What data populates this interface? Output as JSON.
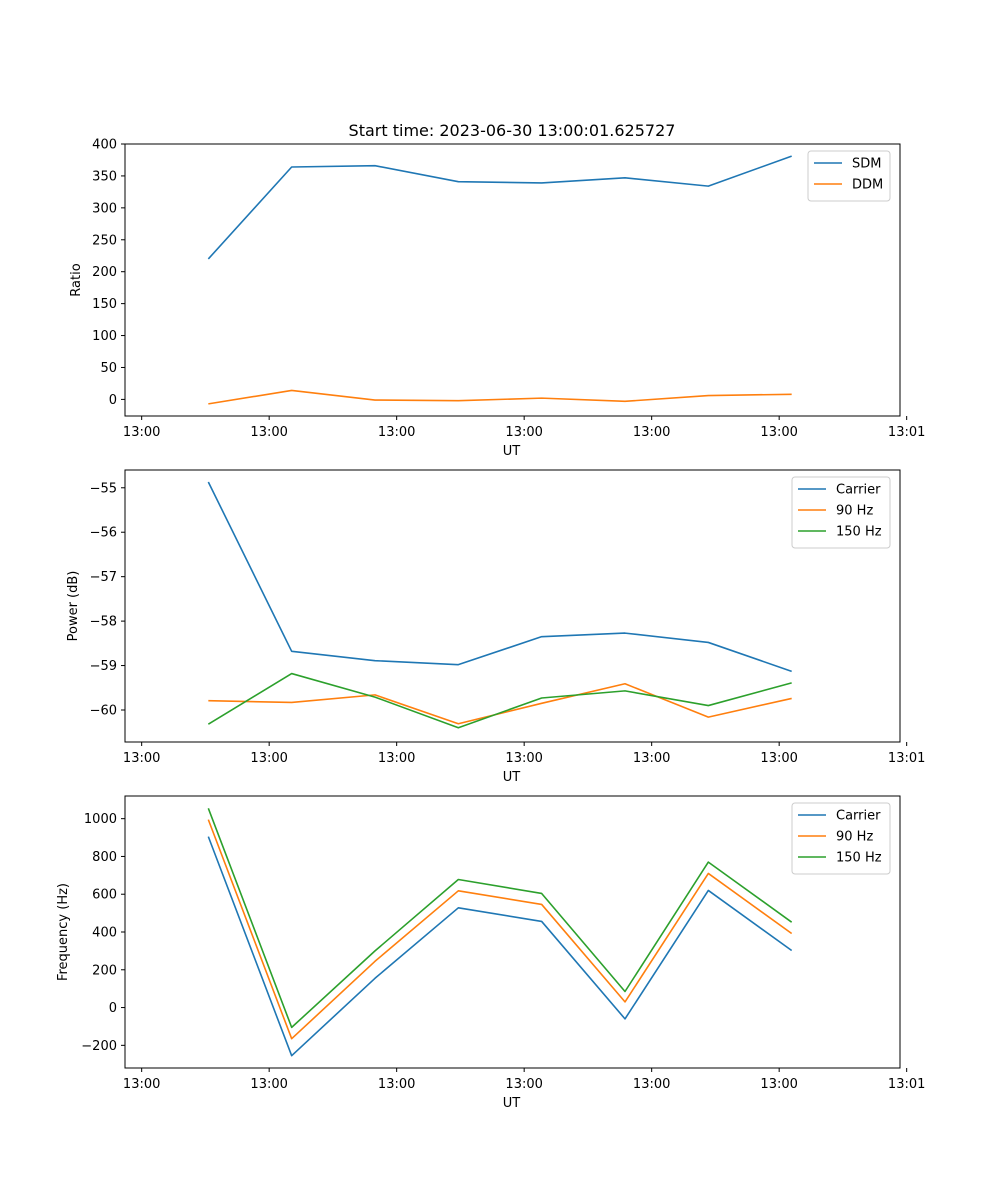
{
  "figure": {
    "title": "Start time: 2023-06-30 13:00:01.625727"
  },
  "colors": {
    "blue": "#1f77b4",
    "orange": "#ff7f0e",
    "green": "#2ca02c"
  },
  "chart_data": [
    {
      "type": "line",
      "title": "Start time: 2023-06-30 13:00:01.625727",
      "xlabel": "UT",
      "ylabel": "Ratio",
      "x": [
        1,
        2,
        3,
        4,
        5,
        6,
        7,
        8
      ],
      "xlim": [
        0,
        9.3
      ],
      "xticks": [
        0.2,
        1.73,
        3.26,
        4.79,
        6.32,
        7.85,
        9.38
      ],
      "xtick_labels": [
        "13:00",
        "13:00",
        "13:00",
        "13:00",
        "13:00",
        "13:00",
        "13:01"
      ],
      "ylim": [
        -26,
        400
      ],
      "yticks": [
        0,
        50,
        100,
        150,
        200,
        250,
        300,
        350,
        400
      ],
      "legend_position": "upper-right",
      "series": [
        {
          "name": "SDM",
          "color": "blue",
          "values": [
            220,
            364,
            366,
            341,
            339,
            347,
            334,
            381
          ]
        },
        {
          "name": "DDM",
          "color": "orange",
          "values": [
            -7,
            14,
            -1,
            -2,
            2,
            -3,
            6,
            8
          ]
        }
      ]
    },
    {
      "type": "line",
      "title": "",
      "xlabel": "UT",
      "ylabel": "Power (dB)",
      "x": [
        1,
        2,
        3,
        4,
        5,
        6,
        7,
        8
      ],
      "xlim": [
        0,
        9.3
      ],
      "xticks": [
        0.2,
        1.73,
        3.26,
        4.79,
        6.32,
        7.85,
        9.38
      ],
      "xtick_labels": [
        "13:00",
        "13:00",
        "13:00",
        "13:00",
        "13:00",
        "13:00",
        "13:01"
      ],
      "ylim": [
        -60.72,
        -54.6
      ],
      "yticks": [
        -60,
        -59,
        -58,
        -57,
        -56,
        -55
      ],
      "ytick_labels": [
        "−60",
        "−59",
        "−58",
        "−57",
        "−56",
        "−55"
      ],
      "legend_position": "upper-right",
      "series": [
        {
          "name": "Carrier",
          "color": "blue",
          "values": [
            -54.87,
            -58.68,
            -58.89,
            -58.98,
            -58.35,
            -58.27,
            -58.48,
            -59.13
          ]
        },
        {
          "name": "90 Hz",
          "color": "orange",
          "values": [
            -59.79,
            -59.83,
            -59.66,
            -60.31,
            -59.85,
            -59.41,
            -60.16,
            -59.74
          ]
        },
        {
          "name": "150 Hz",
          "color": "green",
          "values": [
            -60.32,
            -59.18,
            -59.71,
            -60.4,
            -59.73,
            -59.57,
            -59.9,
            -59.39
          ]
        }
      ]
    },
    {
      "type": "line",
      "title": "",
      "xlabel": "UT",
      "ylabel": "Frequency (Hz)",
      "x": [
        1,
        2,
        3,
        4,
        5,
        6,
        7,
        8
      ],
      "xlim": [
        0,
        9.3
      ],
      "xticks": [
        0.2,
        1.73,
        3.26,
        4.79,
        6.32,
        7.85,
        9.38
      ],
      "xtick_labels": [
        "13:00",
        "13:00",
        "13:00",
        "13:00",
        "13:00",
        "13:00",
        "13:01"
      ],
      "ylim": [
        -320,
        1120
      ],
      "yticks": [
        -200,
        0,
        200,
        400,
        600,
        800,
        1000
      ],
      "ytick_labels": [
        "−200",
        "0",
        "200",
        "400",
        "600",
        "800",
        "1000"
      ],
      "legend_position": "upper-right",
      "series": [
        {
          "name": "Carrier",
          "color": "blue",
          "values": [
            905,
            -255,
            155,
            528,
            456,
            -60,
            620,
            302
          ]
        },
        {
          "name": "90 Hz",
          "color": "orange",
          "values": [
            995,
            -165,
            245,
            618,
            546,
            30,
            710,
            392
          ]
        },
        {
          "name": "150 Hz",
          "color": "green",
          "values": [
            1055,
            -105,
            300,
            678,
            604,
            85,
            770,
            452
          ]
        }
      ]
    }
  ]
}
